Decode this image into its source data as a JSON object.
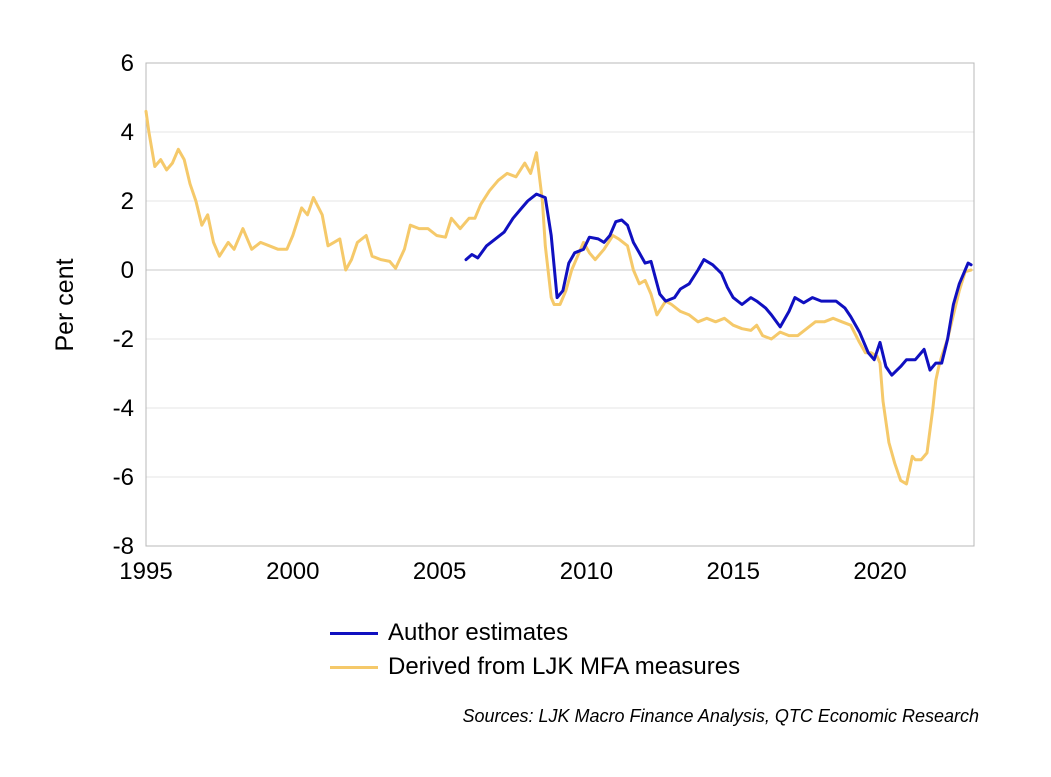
{
  "chart_data": {
    "type": "line",
    "title": "",
    "xlabel": "",
    "ylabel": "Per cent",
    "xlim": [
      1995,
      2023.2
    ],
    "ylim": [
      -8,
      6
    ],
    "x_ticks": [
      1995,
      2000,
      2005,
      2010,
      2015,
      2020
    ],
    "y_ticks": [
      6,
      4,
      2,
      0,
      -2,
      -4,
      -6,
      -8
    ],
    "grid": "horizontal",
    "legend_position": "bottom",
    "series": [
      {
        "name": "Author estimates",
        "color": "#1010c0",
        "x": [
          2005.9,
          2006.1,
          2006.3,
          2006.6,
          2006.9,
          2007.2,
          2007.5,
          2007.8,
          2008.0,
          2008.3,
          2008.6,
          2008.8,
          2009.0,
          2009.2,
          2009.4,
          2009.6,
          2009.9,
          2010.1,
          2010.4,
          2010.6,
          2010.8,
          2011.0,
          2011.2,
          2011.4,
          2011.6,
          2011.8,
          2012.0,
          2012.2,
          2012.5,
          2012.7,
          2013.0,
          2013.2,
          2013.5,
          2013.8,
          2014.0,
          2014.3,
          2014.6,
          2014.8,
          2015.0,
          2015.3,
          2015.6,
          2015.8,
          2016.1,
          2016.3,
          2016.6,
          2016.9,
          2017.1,
          2017.4,
          2017.7,
          2018.0,
          2018.3,
          2018.5,
          2018.8,
          2019.0,
          2019.3,
          2019.6,
          2019.8,
          2020.0,
          2020.2,
          2020.4,
          2020.7,
          2020.9,
          2021.2,
          2021.5,
          2021.7,
          2021.9,
          2022.1,
          2022.3,
          2022.5,
          2022.7,
          2022.9,
          2023.0,
          2023.1
        ],
        "values": [
          0.3,
          0.45,
          0.35,
          0.7,
          0.9,
          1.1,
          1.5,
          1.8,
          2.0,
          2.2,
          2.1,
          1.0,
          -0.8,
          -0.6,
          0.2,
          0.5,
          0.6,
          0.95,
          0.9,
          0.8,
          1.0,
          1.4,
          1.45,
          1.3,
          0.8,
          0.5,
          0.2,
          0.25,
          -0.7,
          -0.9,
          -0.8,
          -0.55,
          -0.4,
          0.0,
          0.3,
          0.15,
          -0.1,
          -0.5,
          -0.8,
          -1.0,
          -0.8,
          -0.9,
          -1.1,
          -1.3,
          -1.65,
          -1.2,
          -0.8,
          -0.95,
          -0.8,
          -0.9,
          -0.9,
          -0.9,
          -1.1,
          -1.35,
          -1.8,
          -2.4,
          -2.6,
          -2.1,
          -2.8,
          -3.05,
          -2.8,
          -2.6,
          -2.6,
          -2.3,
          -2.9,
          -2.7,
          -2.7,
          -2.0,
          -1.0,
          -0.4,
          0.0,
          0.2,
          0.15
        ]
      },
      {
        "name": "Derived from LJK MFA measures",
        "color": "#f5c96a",
        "x": [
          1995.0,
          1995.1,
          1995.3,
          1995.5,
          1995.7,
          1995.9,
          1996.1,
          1996.3,
          1996.5,
          1996.7,
          1996.9,
          1997.1,
          1997.3,
          1997.5,
          1997.8,
          1998.0,
          1998.3,
          1998.6,
          1998.9,
          1999.2,
          1999.5,
          1999.8,
          2000.0,
          2000.3,
          2000.5,
          2000.7,
          2001.0,
          2001.2,
          2001.4,
          2001.6,
          2001.8,
          2002.0,
          2002.2,
          2002.5,
          2002.7,
          2003.0,
          2003.3,
          2003.5,
          2003.8,
          2004.0,
          2004.3,
          2004.6,
          2004.9,
          2005.2,
          2005.4,
          2005.7,
          2006.0,
          2006.2,
          2006.4,
          2006.7,
          2007.0,
          2007.3,
          2007.6,
          2007.9,
          2008.1,
          2008.3,
          2008.5,
          2008.6,
          2008.8,
          2008.9,
          2009.1,
          2009.3,
          2009.5,
          2009.7,
          2009.9,
          2010.1,
          2010.3,
          2010.6,
          2010.9,
          2011.1,
          2011.4,
          2011.6,
          2011.8,
          2012.0,
          2012.2,
          2012.4,
          2012.7,
          2012.9,
          2013.2,
          2013.5,
          2013.8,
          2014.1,
          2014.4,
          2014.7,
          2015.0,
          2015.3,
          2015.6,
          2015.8,
          2016.0,
          2016.3,
          2016.6,
          2016.9,
          2017.2,
          2017.5,
          2017.8,
          2018.1,
          2018.4,
          2018.7,
          2019.0,
          2019.3,
          2019.5,
          2019.7,
          2019.9,
          2020.0,
          2020.1,
          2020.3,
          2020.5,
          2020.7,
          2020.9,
          2021.1,
          2021.2,
          2021.4,
          2021.6,
          2021.8,
          2021.9,
          2022.0,
          2022.1,
          2022.3,
          2022.5,
          2022.7,
          2022.9,
          2023.1
        ],
        "values": [
          4.6,
          4.0,
          3.0,
          3.2,
          2.9,
          3.1,
          3.5,
          3.2,
          2.5,
          2.0,
          1.3,
          1.6,
          0.8,
          0.4,
          0.8,
          0.6,
          1.2,
          0.6,
          0.8,
          0.7,
          0.6,
          0.6,
          1.0,
          1.8,
          1.6,
          2.1,
          1.6,
          0.7,
          0.8,
          0.9,
          0.0,
          0.3,
          0.8,
          1.0,
          0.4,
          0.3,
          0.25,
          0.05,
          0.6,
          1.3,
          1.2,
          1.2,
          1.0,
          0.95,
          1.5,
          1.2,
          1.5,
          1.5,
          1.9,
          2.3,
          2.6,
          2.8,
          2.7,
          3.1,
          2.8,
          3.4,
          2.0,
          0.7,
          -0.8,
          -1.0,
          -1.0,
          -0.6,
          0.0,
          0.4,
          0.8,
          0.5,
          0.3,
          0.6,
          1.0,
          0.9,
          0.7,
          0.0,
          -0.4,
          -0.3,
          -0.7,
          -1.3,
          -0.9,
          -1.0,
          -1.2,
          -1.3,
          -1.5,
          -1.4,
          -1.5,
          -1.4,
          -1.6,
          -1.7,
          -1.75,
          -1.6,
          -1.9,
          -2.0,
          -1.8,
          -1.9,
          -1.9,
          -1.7,
          -1.5,
          -1.5,
          -1.4,
          -1.5,
          -1.6,
          -2.1,
          -2.4,
          -2.4,
          -2.5,
          -2.7,
          -3.8,
          -5.0,
          -5.6,
          -6.1,
          -6.2,
          -5.4,
          -5.5,
          -5.5,
          -5.3,
          -4.0,
          -3.2,
          -2.8,
          -2.5,
          -2.0,
          -1.3,
          -0.6,
          -0.05,
          0.0
        ]
      }
    ]
  },
  "source": "Sources: LJK Macro Finance Analysis, QTC Economic Research"
}
